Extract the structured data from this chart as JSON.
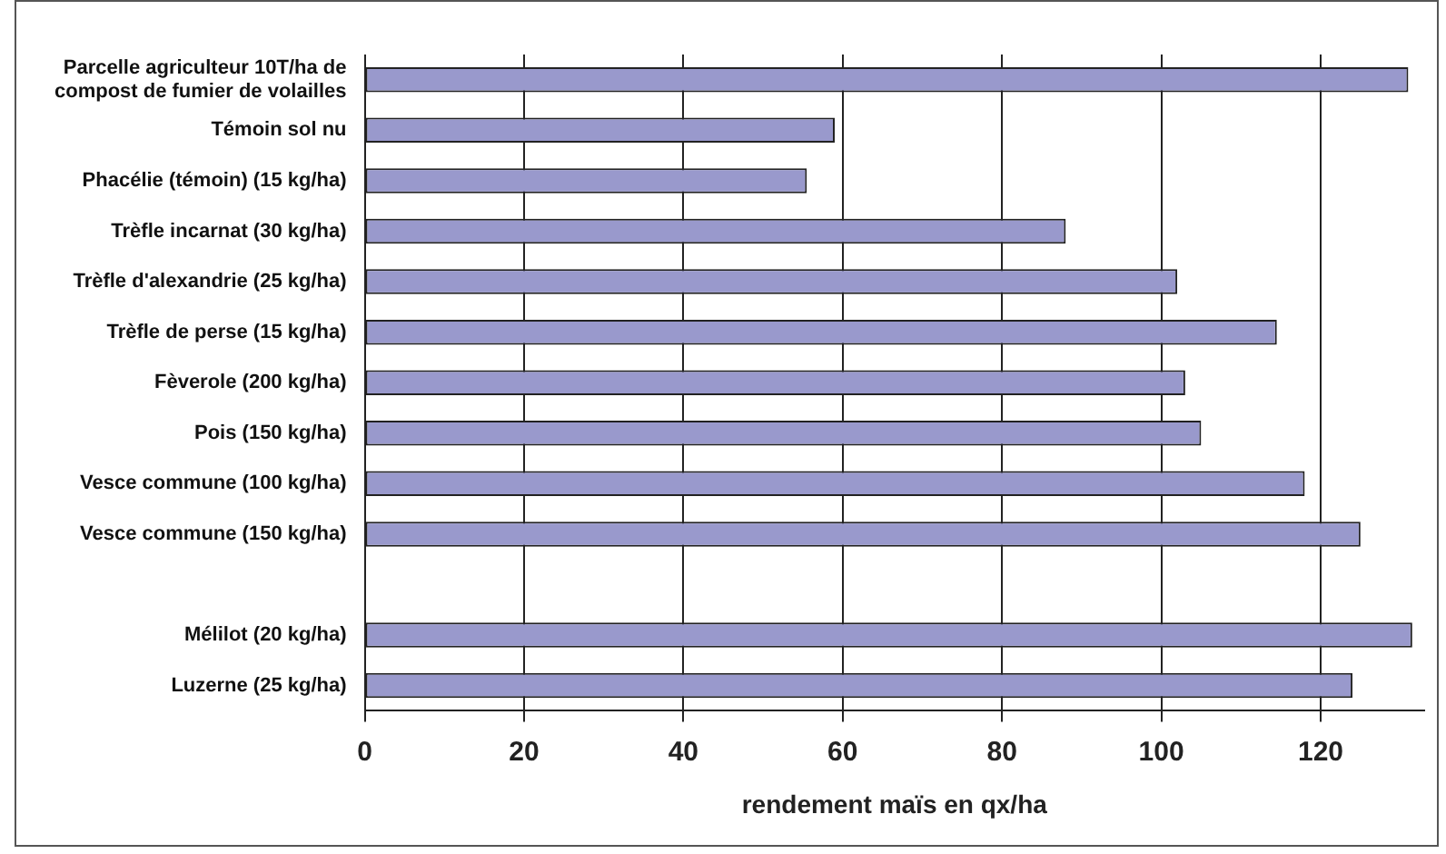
{
  "chart_data": {
    "type": "bar",
    "orientation": "horizontal",
    "xlabel": "rendement maïs en qx/ha",
    "categories": [
      "Parcelle agriculteur 10T/ha de compost de fumier de volailles",
      "Témoin sol nu",
      "Phacélie (témoin) (15 kg/ha)",
      "Trèfle incarnat (30 kg/ha)",
      "Trèfle d'alexandrie (25 kg/ha)",
      "Trèfle de perse (15 kg/ha)",
      "Fèverole (200 kg/ha)",
      "Pois (150 kg/ha)",
      "Vesce commune (100 kg/ha)",
      "Vesce commune (150 kg/ha)",
      null,
      "Mélilot (20 kg/ha)",
      "Luzerne (25 kg/ha)"
    ],
    "values": [
      131,
      59,
      55.5,
      88,
      102,
      114.5,
      103,
      105,
      118,
      125,
      null,
      131.5,
      124
    ],
    "color": "#9999cc",
    "xlim": [
      0,
      133
    ],
    "xticks": [
      0,
      20,
      40,
      60,
      80,
      100,
      120
    ],
    "grid": "x",
    "legend": false
  }
}
